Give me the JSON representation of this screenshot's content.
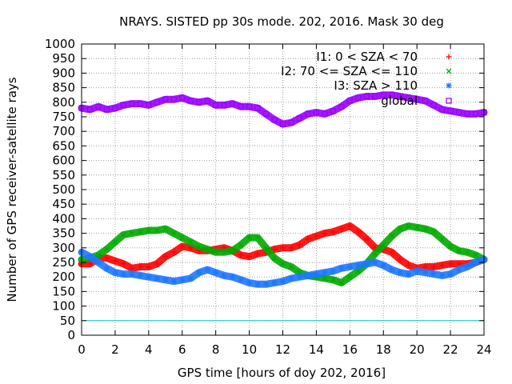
{
  "chart_data": {
    "type": "scatter",
    "title": "NRAYS. SISTED pp 30s mode. 202, 2016. Mask 30 deg",
    "xlabel": "GPS time [hours of doy 202, 2016]",
    "ylabel": "Number of GPS receiver-satellite rays",
    "xlim": [
      0,
      24
    ],
    "ylim": [
      0,
      1000
    ],
    "xticks": [
      0,
      2,
      4,
      6,
      8,
      10,
      12,
      14,
      16,
      18,
      20,
      22,
      24
    ],
    "yticks": [
      0,
      50,
      100,
      150,
      200,
      250,
      300,
      350,
      400,
      450,
      500,
      550,
      600,
      650,
      700,
      750,
      800,
      850,
      900,
      950,
      1000
    ],
    "grid": true,
    "legend_position": "top-right",
    "reference_line": {
      "y": 50,
      "color": "#00cccc"
    },
    "series": [
      {
        "name": "I1: 0 < SZA < 70",
        "marker": "+",
        "color": "#ff0000",
        "x": [
          0,
          0.5,
          1,
          1.5,
          2,
          2.5,
          3,
          3.5,
          4,
          4.5,
          5,
          5.5,
          6,
          6.5,
          7,
          7.5,
          8,
          8.5,
          9,
          9.5,
          10,
          10.5,
          11,
          11.5,
          12,
          12.5,
          13,
          13.5,
          14,
          14.5,
          15,
          15.5,
          16,
          16.5,
          17,
          17.5,
          18,
          18.5,
          19,
          19.5,
          20,
          20.5,
          21,
          21.5,
          22,
          22.5,
          23,
          23.5,
          24
        ],
        "values": [
          245,
          245,
          265,
          265,
          255,
          245,
          230,
          235,
          235,
          245,
          270,
          285,
          305,
          300,
          290,
          290,
          295,
          300,
          290,
          275,
          270,
          280,
          285,
          295,
          300,
          300,
          310,
          330,
          340,
          350,
          355,
          365,
          375,
          355,
          330,
          300,
          295,
          285,
          260,
          240,
          230,
          235,
          235,
          240,
          245,
          245,
          245,
          250,
          260
        ]
      },
      {
        "name": "I2: 70 <= SZA <= 110",
        "marker": "x",
        "color": "#00aa00",
        "x": [
          0,
          0.5,
          1,
          1.5,
          2,
          2.5,
          3,
          3.5,
          4,
          4.5,
          5,
          5.5,
          6,
          6.5,
          7,
          7.5,
          8,
          8.5,
          9,
          9.5,
          10,
          10.5,
          11,
          11.5,
          12,
          12.5,
          13,
          13.5,
          14,
          14.5,
          15,
          15.5,
          16,
          16.5,
          17,
          17.5,
          18,
          18.5,
          19,
          19.5,
          20,
          20.5,
          21,
          21.5,
          22,
          22.5,
          23,
          23.5,
          24
        ],
        "values": [
          260,
          265,
          275,
          295,
          320,
          345,
          350,
          355,
          360,
          360,
          365,
          350,
          335,
          320,
          305,
          295,
          285,
          285,
          290,
          310,
          335,
          335,
          300,
          265,
          245,
          235,
          215,
          205,
          200,
          195,
          190,
          180,
          200,
          220,
          245,
          280,
          310,
          340,
          365,
          375,
          370,
          365,
          355,
          330,
          305,
          290,
          285,
          275,
          260
        ]
      },
      {
        "name": "I3: SZA > 110",
        "marker": "*",
        "color": "#1e78ff",
        "x": [
          0,
          0.5,
          1,
          1.5,
          2,
          2.5,
          3,
          3.5,
          4,
          4.5,
          5,
          5.5,
          6,
          6.5,
          7,
          7.5,
          8,
          8.5,
          9,
          9.5,
          10,
          10.5,
          11,
          11.5,
          12,
          12.5,
          13,
          13.5,
          14,
          14.5,
          15,
          15.5,
          16,
          16.5,
          17,
          17.5,
          18,
          18.5,
          19,
          19.5,
          20,
          20.5,
          21,
          21.5,
          22,
          22.5,
          23,
          23.5,
          24
        ],
        "values": [
          285,
          270,
          250,
          230,
          215,
          210,
          210,
          205,
          200,
          195,
          190,
          185,
          190,
          195,
          215,
          225,
          215,
          205,
          200,
          190,
          180,
          175,
          175,
          180,
          185,
          195,
          200,
          205,
          210,
          215,
          220,
          230,
          235,
          240,
          245,
          250,
          240,
          225,
          215,
          210,
          220,
          215,
          210,
          205,
          210,
          225,
          235,
          250,
          260
        ]
      },
      {
        "name": "global",
        "marker": "square",
        "color": "#9900ff",
        "x": [
          0,
          0.5,
          1,
          1.5,
          2,
          2.5,
          3,
          3.5,
          4,
          4.5,
          5,
          5.5,
          6,
          6.5,
          7,
          7.5,
          8,
          8.5,
          9,
          9.5,
          10,
          10.5,
          11,
          11.5,
          12,
          12.5,
          13,
          13.5,
          14,
          14.5,
          15,
          15.5,
          16,
          16.5,
          17,
          17.5,
          18,
          18.5,
          19,
          19.5,
          20,
          20.5,
          21,
          21.5,
          22,
          22.5,
          23,
          23.5,
          24
        ],
        "values": [
          780,
          775,
          785,
          775,
          780,
          790,
          795,
          795,
          790,
          800,
          810,
          810,
          815,
          805,
          800,
          805,
          790,
          790,
          795,
          785,
          785,
          780,
          760,
          740,
          725,
          730,
          745,
          760,
          765,
          760,
          770,
          785,
          805,
          815,
          820,
          820,
          825,
          825,
          820,
          815,
          810,
          805,
          790,
          775,
          770,
          765,
          760,
          760,
          765
        ]
      }
    ]
  }
}
